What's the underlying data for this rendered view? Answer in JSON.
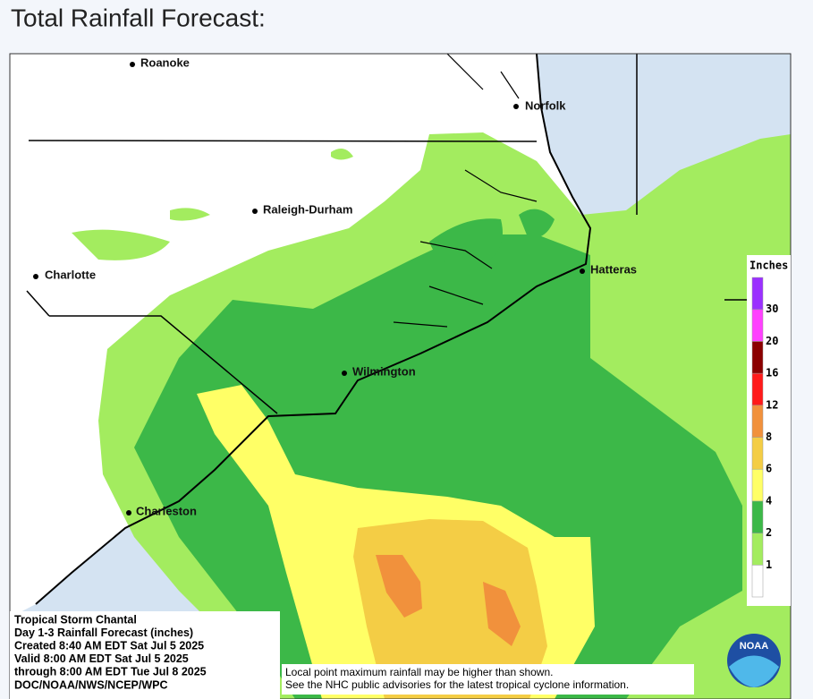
{
  "header": {
    "title": "Total Rainfall Forecast:"
  },
  "map": {
    "cities": [
      "Roanoke",
      "Norfolk",
      "Raleigh-Durham",
      "Charlotte",
      "Hatteras",
      "Wilmington",
      "Charleston"
    ],
    "legend": {
      "title": "Inches",
      "levels": [
        1,
        2,
        4,
        6,
        8,
        12,
        16,
        20,
        30
      ],
      "colors": [
        "#ffffff",
        "#a3ec5f",
        "#3cb848",
        "#ffff66",
        "#f4cd45",
        "#f1913c",
        "#ff1a1a",
        "#8b0000",
        "#ff40ff",
        "#9b30ff"
      ]
    },
    "info": [
      "Tropical Storm Chantal",
      "Day 1-3 Rainfall Forecast (inches)",
      "Created 8:40 AM EDT Sat Jul 5 2025",
      "Valid 8:00 AM EDT Sat Jul 5 2025",
      "through 8:00 AM EDT Tue Jul 8 2025",
      "DOC/NOAA/NWS/NCEP/WPC"
    ],
    "disclaimer": [
      "Local point maximum rainfall may be higher than shown.",
      "See the NHC public advisories for the latest tropical cyclone information."
    ],
    "logo": "NOAA"
  }
}
